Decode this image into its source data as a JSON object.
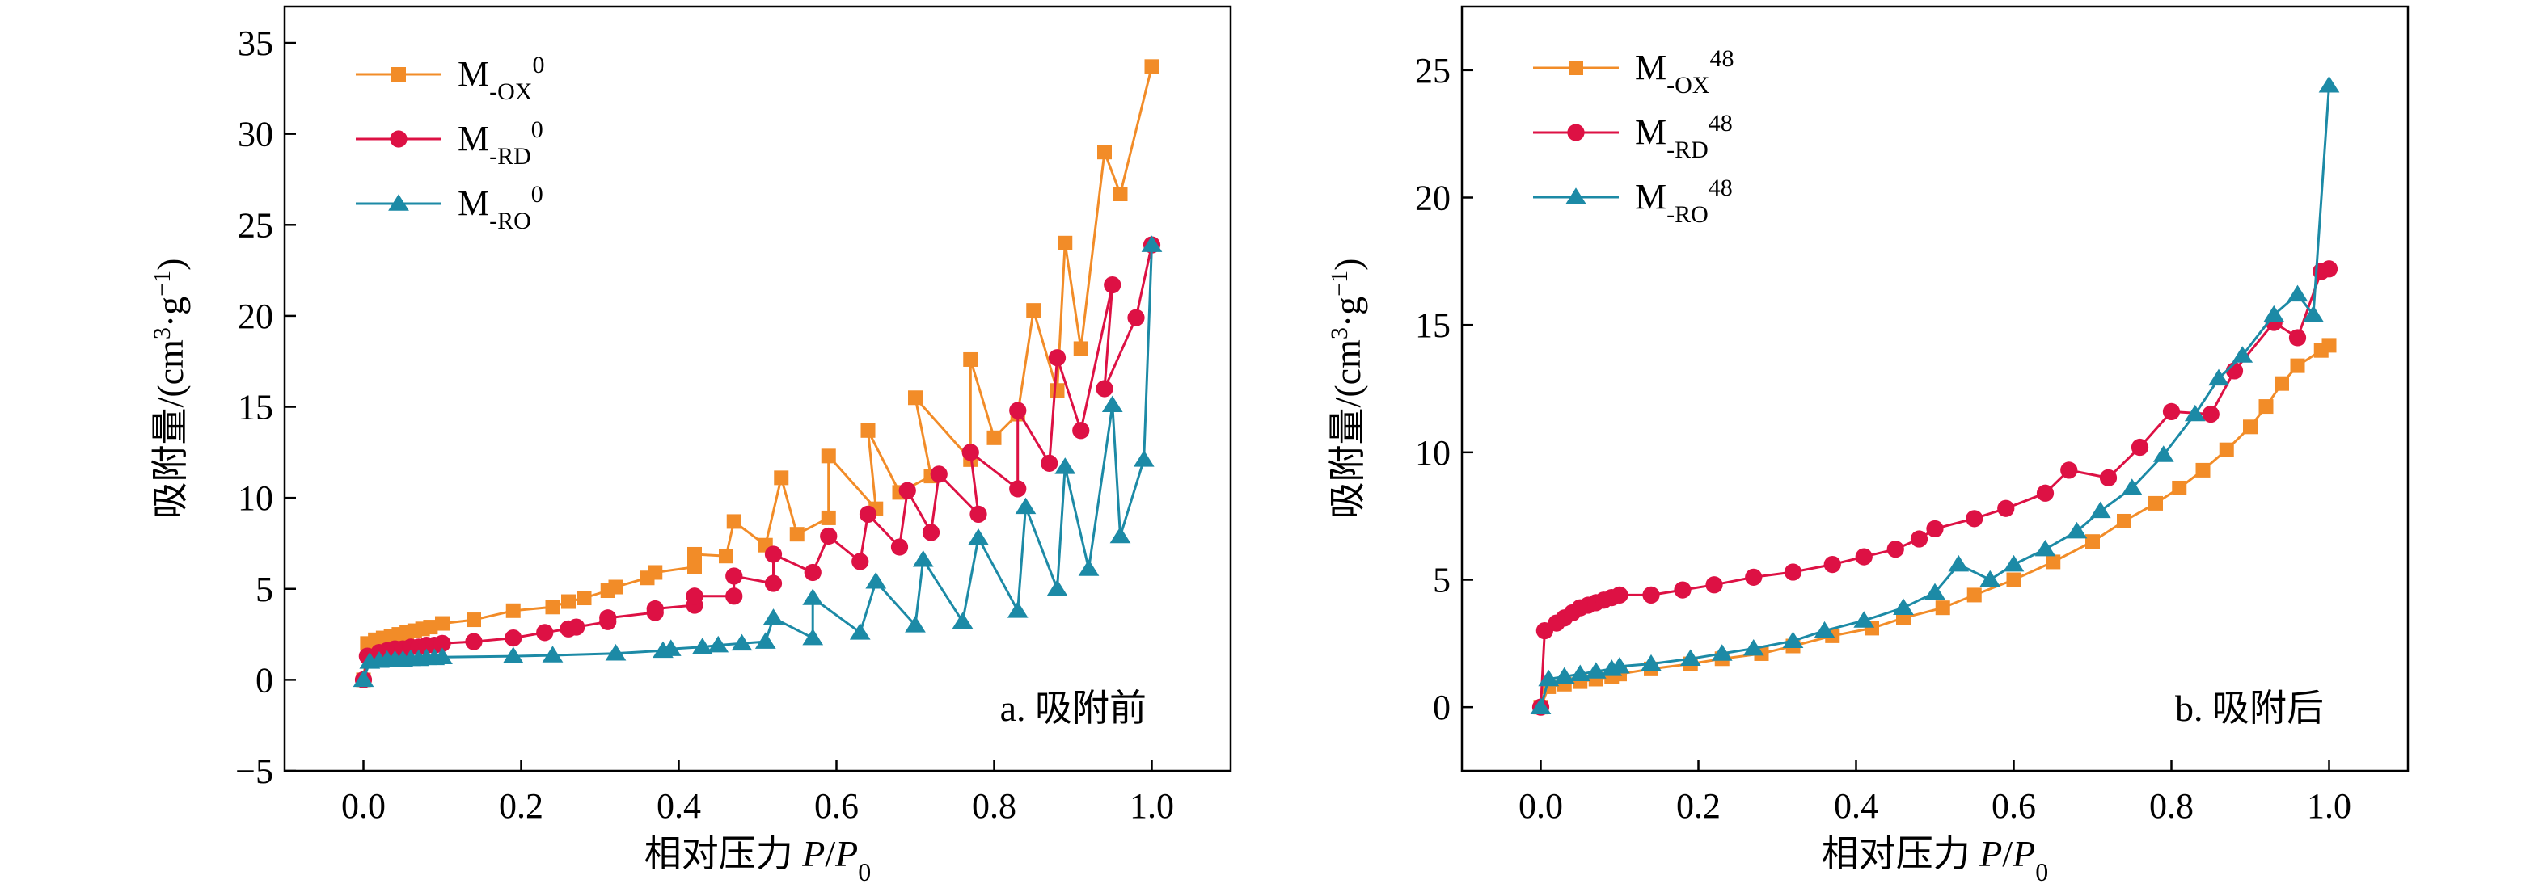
{
  "chart_data": [
    {
      "type": "line",
      "panel_label": "a. 吸附前",
      "xlabel": {
        "prefix": "相对压力 ",
        "p": "P",
        "slash": "/",
        "p0": "P",
        "sub0": "0"
      },
      "ylabel": {
        "main": "吸附量/(cm",
        "sup3": "3",
        "mid": "·g",
        "supm1": "−1",
        "end": ")"
      },
      "xlim": [
        -0.1,
        1.1
      ],
      "ylim": [
        -5,
        37
      ],
      "xticks": [
        0.0,
        0.2,
        0.4,
        0.6,
        0.8,
        1.0
      ],
      "xtick_labels": [
        "0.0",
        "0.2",
        "0.4",
        "0.6",
        "0.8",
        "1.0"
      ],
      "yticks": [
        -5,
        0,
        5,
        10,
        15,
        20,
        25,
        30,
        35
      ],
      "ytick_labels": [
        "−5",
        "0",
        "5",
        "10",
        "15",
        "20",
        "25",
        "30",
        "35"
      ],
      "legend_position": "top-left",
      "series": [
        {
          "label": {
            "base": "M",
            "sub": "-OX",
            "sup": "0"
          },
          "color": "#F28C28",
          "marker": "square",
          "x": [
            0.0,
            0.005,
            0.015,
            0.025,
            0.035,
            0.045,
            0.055,
            0.065,
            0.075,
            0.085,
            0.1,
            0.14,
            0.19,
            0.24,
            0.26,
            0.28,
            0.31,
            0.32,
            0.36,
            0.37,
            0.42,
            0.42,
            0.46,
            0.47,
            0.51,
            0.53,
            0.55,
            0.59,
            0.59,
            0.65,
            0.64,
            0.68,
            0.72,
            0.7,
            0.77,
            0.77,
            0.8,
            0.83,
            0.85,
            0.88,
            0.89,
            0.91,
            0.94,
            0.96,
            1.0
          ],
          "y": [
            0.0,
            2.0,
            2.2,
            2.3,
            2.4,
            2.5,
            2.6,
            2.7,
            2.8,
            2.9,
            3.1,
            3.3,
            3.8,
            4.0,
            4.3,
            4.5,
            4.9,
            5.1,
            5.6,
            5.9,
            6.2,
            6.9,
            6.8,
            8.7,
            7.4,
            11.1,
            8.0,
            8.9,
            12.3,
            9.4,
            13.7,
            10.3,
            11.2,
            15.5,
            12.1,
            17.6,
            13.3,
            14.6,
            20.3,
            15.9,
            24.0,
            18.2,
            29.0,
            26.7,
            33.7
          ]
        },
        {
          "label": {
            "base": "M",
            "sub": "-RD",
            "sup": "0"
          },
          "color": "#DD1144",
          "marker": "circle",
          "x": [
            0.0,
            0.005,
            0.02,
            0.03,
            0.04,
            0.05,
            0.06,
            0.07,
            0.08,
            0.09,
            0.1,
            0.14,
            0.19,
            0.23,
            0.26,
            0.27,
            0.31,
            0.31,
            0.37,
            0.37,
            0.42,
            0.42,
            0.47,
            0.47,
            0.52,
            0.52,
            0.57,
            0.59,
            0.63,
            0.64,
            0.68,
            0.69,
            0.72,
            0.73,
            0.78,
            0.77,
            0.83,
            0.83,
            0.87,
            0.88,
            0.91,
            0.95,
            0.94,
            0.98,
            1.0
          ],
          "y": [
            0.0,
            1.3,
            1.5,
            1.6,
            1.7,
            1.7,
            1.8,
            1.8,
            1.9,
            1.9,
            2.0,
            2.1,
            2.3,
            2.6,
            2.8,
            2.9,
            3.2,
            3.4,
            3.7,
            3.9,
            4.1,
            4.6,
            4.6,
            5.7,
            5.3,
            6.9,
            5.9,
            7.9,
            6.5,
            9.1,
            7.3,
            10.4,
            8.1,
            11.3,
            9.1,
            12.5,
            10.5,
            14.8,
            11.9,
            17.7,
            13.7,
            21.7,
            16.0,
            19.9,
            23.9
          ]
        },
        {
          "label": {
            "base": "M",
            "sub": "-RO",
            "sup": "0"
          },
          "color": "#1C8AA6",
          "marker": "triangle",
          "x": [
            0.0,
            0.008,
            0.02,
            0.03,
            0.04,
            0.05,
            0.06,
            0.07,
            0.08,
            0.09,
            0.1,
            0.19,
            0.24,
            0.32,
            0.38,
            0.39,
            0.43,
            0.45,
            0.48,
            0.51,
            0.52,
            0.57,
            0.57,
            0.63,
            0.65,
            0.7,
            0.71,
            0.76,
            0.78,
            0.83,
            0.84,
            0.88,
            0.89,
            0.92,
            0.95,
            0.96,
            0.99,
            1.0
          ],
          "y": [
            0.0,
            1.0,
            1.05,
            1.1,
            1.1,
            1.1,
            1.15,
            1.15,
            1.2,
            1.2,
            1.25,
            1.3,
            1.35,
            1.45,
            1.6,
            1.7,
            1.8,
            1.9,
            2.0,
            2.1,
            3.4,
            2.3,
            4.5,
            2.6,
            5.4,
            3.0,
            6.6,
            3.2,
            7.8,
            3.8,
            9.5,
            5.0,
            11.7,
            6.1,
            15.1,
            7.9,
            12.1,
            23.9
          ]
        }
      ]
    },
    {
      "type": "line",
      "panel_label": "b. 吸附后",
      "xlabel": {
        "prefix": "相对压力 ",
        "p": "P",
        "slash": "/",
        "p0": "P",
        "sub0": "0"
      },
      "ylabel": {
        "main": "吸附量/(cm",
        "sup3": "3",
        "mid": "·g",
        "supm1": "−1",
        "end": ")"
      },
      "xlim": [
        -0.1,
        1.1
      ],
      "ylim": [
        -2.5,
        27.5
      ],
      "xticks": [
        0.0,
        0.2,
        0.4,
        0.6,
        0.8,
        1.0
      ],
      "xtick_labels": [
        "0.0",
        "0.2",
        "0.4",
        "0.6",
        "0.8",
        "1.0"
      ],
      "yticks": [
        0,
        5,
        10,
        15,
        20,
        25
      ],
      "ytick_labels": [
        "0",
        "5",
        "10",
        "15",
        "20",
        "25"
      ],
      "legend_position": "top-left",
      "series": [
        {
          "label": {
            "base": "M",
            "sub": "-OX",
            "sup": "48"
          },
          "color": "#F28C28",
          "marker": "square",
          "x": [
            0.0,
            0.01,
            0.03,
            0.05,
            0.07,
            0.09,
            0.1,
            0.14,
            0.19,
            0.23,
            0.28,
            0.32,
            0.37,
            0.42,
            0.46,
            0.51,
            0.55,
            0.6,
            0.65,
            0.7,
            0.74,
            0.78,
            0.81,
            0.84,
            0.87,
            0.9,
            0.92,
            0.94,
            0.96,
            0.99,
            1.0
          ],
          "y": [
            0.0,
            0.8,
            0.9,
            1.0,
            1.1,
            1.2,
            1.3,
            1.5,
            1.7,
            1.9,
            2.1,
            2.4,
            2.8,
            3.1,
            3.5,
            3.9,
            4.4,
            5.0,
            5.7,
            6.5,
            7.3,
            8.0,
            8.6,
            9.3,
            10.1,
            11.0,
            11.8,
            12.7,
            13.4,
            14.0,
            14.2
          ]
        },
        {
          "label": {
            "base": "M",
            "sub": "-RD",
            "sup": "48"
          },
          "color": "#DD1144",
          "marker": "circle",
          "x": [
            0.0,
            0.005,
            0.02,
            0.03,
            0.04,
            0.05,
            0.06,
            0.07,
            0.08,
            0.09,
            0.1,
            0.14,
            0.18,
            0.22,
            0.27,
            0.32,
            0.37,
            0.41,
            0.45,
            0.48,
            0.5,
            0.55,
            0.59,
            0.64,
            0.67,
            0.72,
            0.76,
            0.8,
            0.85,
            0.88,
            0.93,
            0.96,
            0.99,
            1.0
          ],
          "y": [
            0.0,
            3.0,
            3.3,
            3.5,
            3.7,
            3.9,
            4.0,
            4.1,
            4.2,
            4.3,
            4.4,
            4.4,
            4.6,
            4.8,
            5.1,
            5.3,
            5.6,
            5.9,
            6.2,
            6.6,
            7.0,
            7.4,
            7.8,
            8.4,
            9.3,
            9.0,
            10.2,
            11.6,
            11.5,
            13.2,
            15.1,
            14.5,
            17.1,
            17.2
          ]
        },
        {
          "label": {
            "base": "M",
            "sub": "-RO",
            "sup": "48"
          },
          "color": "#1C8AA6",
          "marker": "triangle",
          "x": [
            0.0,
            0.01,
            0.03,
            0.05,
            0.07,
            0.09,
            0.1,
            0.14,
            0.19,
            0.23,
            0.27,
            0.32,
            0.36,
            0.41,
            0.46,
            0.5,
            0.53,
            0.57,
            0.6,
            0.64,
            0.68,
            0.71,
            0.75,
            0.79,
            0.83,
            0.86,
            0.89,
            0.93,
            0.96,
            0.98,
            1.0
          ],
          "y": [
            0.0,
            1.1,
            1.2,
            1.3,
            1.4,
            1.5,
            1.6,
            1.7,
            1.9,
            2.1,
            2.3,
            2.6,
            3.0,
            3.4,
            3.9,
            4.5,
            5.6,
            5.0,
            5.6,
            6.2,
            6.9,
            7.7,
            8.6,
            9.9,
            11.5,
            12.9,
            13.8,
            15.4,
            16.2,
            15.4,
            24.4
          ]
        }
      ]
    }
  ]
}
